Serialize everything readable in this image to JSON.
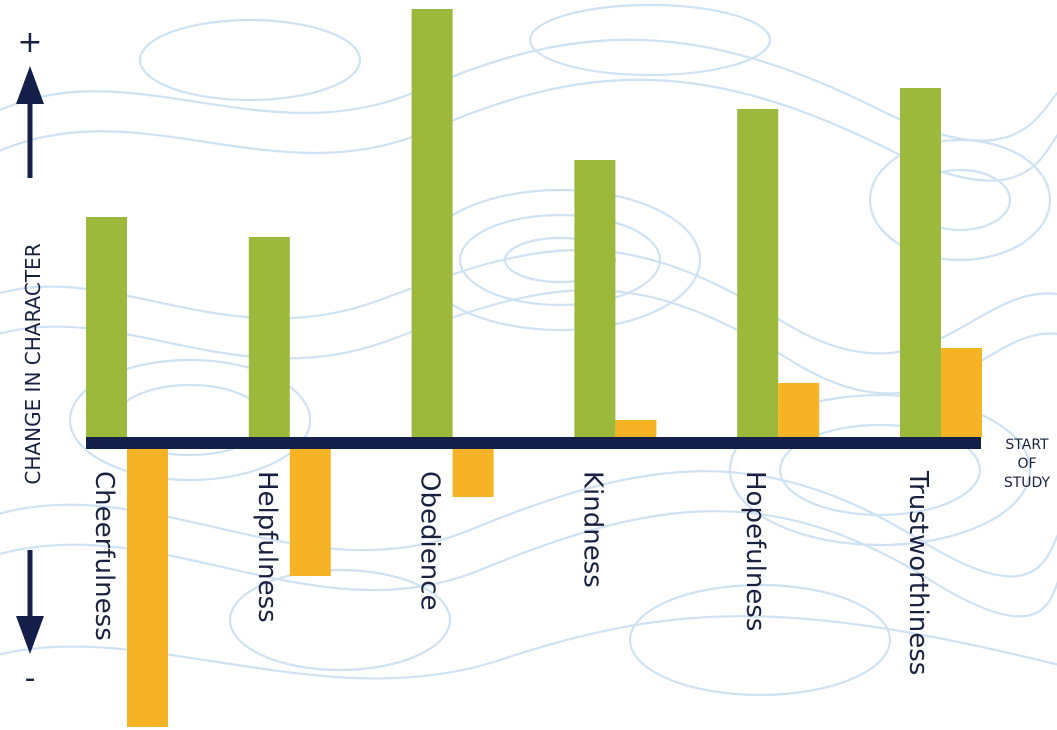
{
  "chart_data": {
    "type": "bar",
    "title": "",
    "ylabel": "CHANGE IN CHARACTER",
    "y_positive_symbol": "+",
    "y_negative_symbol": "-",
    "baseline_label": [
      "START",
      "OF",
      "STUDY"
    ],
    "categories": [
      "Cheerfulness",
      "Helpfulness",
      "Obedience",
      "Kindness",
      "Hopefulness",
      "Trustworthiness"
    ],
    "series": [
      {
        "color": "#9cb93c",
        "values": [
          220,
          200,
          428,
          277,
          328,
          349
        ]
      },
      {
        "color": "#f6b325",
        "values": [
          -278,
          -127,
          -48,
          17,
          54,
          89
        ]
      }
    ],
    "ylim": [
      -290,
      440
    ],
    "grid": false,
    "legend": "none"
  },
  "colors": {
    "axis": "#14204a",
    "contour": "#cfe2f3"
  }
}
